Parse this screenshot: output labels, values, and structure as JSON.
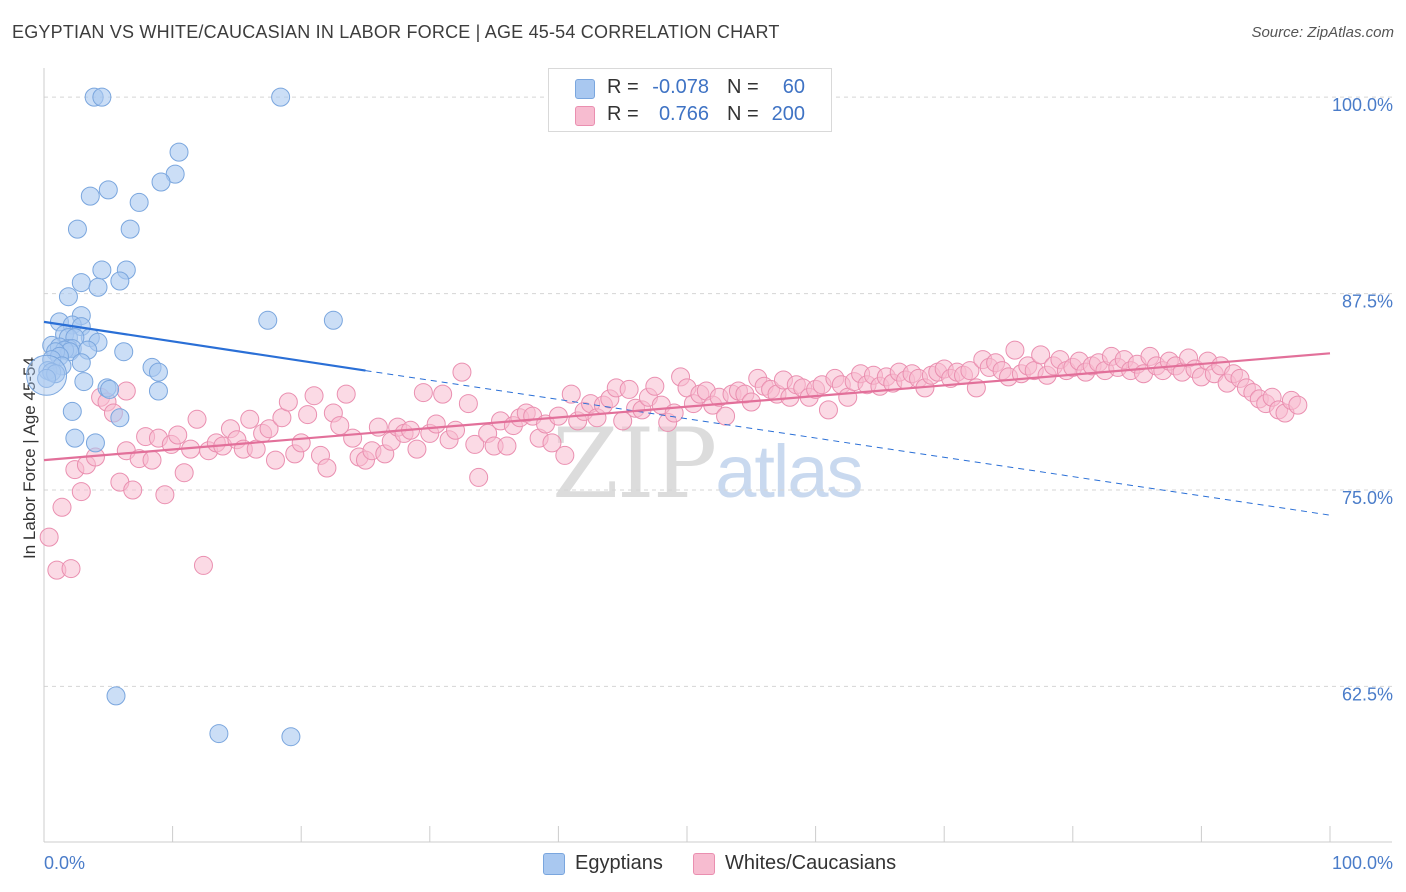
{
  "header": {
    "title": "EGYPTIAN VS WHITE/CAUCASIAN IN LABOR FORCE | AGE 45-54 CORRELATION CHART",
    "source": "Source: ZipAtlas.com"
  },
  "watermark": {
    "zip": "ZIP",
    "atlas": "atlas"
  },
  "legend": {
    "rows": [
      {
        "r_label": "R =",
        "r_value": "-0.078",
        "n_label": "N =",
        "n_value": "60"
      },
      {
        "r_label": "R =",
        "r_value": "0.766",
        "n_label": "N =",
        "n_value": "200"
      }
    ]
  },
  "bottom_legend": {
    "egyptians": "Egyptians",
    "whites": "Whites/Caucasians"
  },
  "colors": {
    "blue_fill": "#a9c8f0",
    "blue_stroke": "#7aa6de",
    "blue_line": "#2a6fd6",
    "pink_fill": "#f7bcd0",
    "pink_stroke": "#ea8fb0",
    "pink_line": "#e2709a",
    "grid": "#d5d5d5",
    "axis": "#cccccc",
    "tick_text": "#4a7cc9"
  },
  "chart_data": {
    "type": "scatter",
    "title": "EGYPTIAN VS WHITE/CAUCASIAN IN LABOR FORCE | AGE 45-54 CORRELATION CHART",
    "xlabel": "",
    "ylabel": "In Labor Force | Age 45-54",
    "xlim": [
      0,
      100
    ],
    "ylim": [
      52.6,
      101.6
    ],
    "x_tick_labels": [
      "0.0%",
      "100.0%"
    ],
    "y_ticks": [
      {
        "value": 100.0,
        "label": "100.0%"
      },
      {
        "value": 87.5,
        "label": "87.5%"
      },
      {
        "value": 75.0,
        "label": "75.0%"
      },
      {
        "value": 62.5,
        "label": "62.5%"
      }
    ],
    "series": [
      {
        "name": "Egyptians",
        "R": -0.078,
        "N": 60,
        "trend": {
          "x0": 0,
          "y0": 85.7,
          "x1": 25,
          "y1": 82.6,
          "dashed_to_x": 100,
          "dashed_to_y": 73.4
        },
        "points": [
          [
            3.9,
            100
          ],
          [
            4.5,
            100
          ],
          [
            18.4,
            100
          ],
          [
            10.5,
            96.5
          ],
          [
            10.2,
            95.1
          ],
          [
            9.1,
            94.6
          ],
          [
            5.0,
            94.1
          ],
          [
            3.6,
            93.7
          ],
          [
            7.4,
            93.3
          ],
          [
            2.6,
            91.6
          ],
          [
            6.7,
            91.6
          ],
          [
            4.5,
            89
          ],
          [
            6.4,
            89
          ],
          [
            5.9,
            88.3
          ],
          [
            2.9,
            88.2
          ],
          [
            4.2,
            87.9
          ],
          [
            1.9,
            87.3
          ],
          [
            2.9,
            86.1
          ],
          [
            17.4,
            85.8
          ],
          [
            22.5,
            85.8
          ],
          [
            1.2,
            85.7
          ],
          [
            2.2,
            85.5
          ],
          [
            2.9,
            85.4
          ],
          [
            1.6,
            84.9
          ],
          [
            1.9,
            84.7
          ],
          [
            3.6,
            84.7
          ],
          [
            2.4,
            84.7
          ],
          [
            4.2,
            84.4
          ],
          [
            0.6,
            84.2
          ],
          [
            1.2,
            84.1
          ],
          [
            1.9,
            84
          ],
          [
            2.2,
            84
          ],
          [
            1.6,
            83.9
          ],
          [
            3.4,
            83.9
          ],
          [
            2.0,
            83.8
          ],
          [
            0.9,
            83.8
          ],
          [
            6.2,
            83.8
          ],
          [
            1.2,
            83.5
          ],
          [
            0.6,
            83.3
          ],
          [
            2.9,
            83.1
          ],
          [
            1.4,
            82.9
          ],
          [
            8.4,
            82.8
          ],
          [
            0.3,
            82.6
          ],
          [
            0.6,
            82.5
          ],
          [
            0.9,
            82.4
          ],
          [
            8.9,
            82.5
          ],
          [
            0.2,
            82.1
          ],
          [
            3.1,
            81.9
          ],
          [
            4.9,
            81.5
          ],
          [
            5.1,
            81.4
          ],
          [
            8.9,
            81.3
          ],
          [
            5.9,
            79.6
          ],
          [
            2.2,
            80
          ],
          [
            2.4,
            78.3
          ],
          [
            4.0,
            78
          ],
          [
            5.6,
            61.9
          ],
          [
            13.6,
            59.5
          ],
          [
            19.2,
            59.3
          ]
        ]
      },
      {
        "name": "Whites/Caucasians",
        "R": 0.766,
        "N": 200,
        "trend": {
          "x0": 0,
          "y0": 76.9,
          "x1": 100,
          "y1": 83.7
        },
        "points": [
          [
            0.4,
            72
          ],
          [
            1.0,
            69.9
          ],
          [
            2.1,
            70
          ],
          [
            1.4,
            73.9
          ],
          [
            2.9,
            74.9
          ],
          [
            2.4,
            76.3
          ],
          [
            3.3,
            76.6
          ],
          [
            4.0,
            77.1
          ],
          [
            4.4,
            80.9
          ],
          [
            4.9,
            80.6
          ],
          [
            5.4,
            79.9
          ],
          [
            5.9,
            75.5
          ],
          [
            6.4,
            77.5
          ],
          [
            6.9,
            75
          ],
          [
            6.4,
            81.3
          ],
          [
            7.4,
            77
          ],
          [
            7.9,
            78.4
          ],
          [
            8.4,
            76.9
          ],
          [
            8.9,
            78.3
          ],
          [
            9.4,
            74.7
          ],
          [
            9.9,
            77.9
          ],
          [
            10.4,
            78.5
          ],
          [
            10.9,
            76.1
          ],
          [
            11.4,
            77.6
          ],
          [
            11.9,
            79.5
          ],
          [
            12.4,
            70.2
          ],
          [
            12.8,
            77.5
          ],
          [
            13.4,
            78
          ],
          [
            13.9,
            77.8
          ],
          [
            14.5,
            78.9
          ],
          [
            15.0,
            78.2
          ],
          [
            15.5,
            77.6
          ],
          [
            16.0,
            79.5
          ],
          [
            16.5,
            77.6
          ],
          [
            17.0,
            78.6
          ],
          [
            17.5,
            78.9
          ],
          [
            18.0,
            76.9
          ],
          [
            18.5,
            79.6
          ],
          [
            19.0,
            80.6
          ],
          [
            19.5,
            77.3
          ],
          [
            20.0,
            78
          ],
          [
            20.5,
            79.8
          ],
          [
            21.0,
            81
          ],
          [
            21.5,
            77.2
          ],
          [
            22.0,
            76.4
          ],
          [
            22.5,
            79.9
          ],
          [
            23.0,
            79.1
          ],
          [
            23.5,
            81.1
          ],
          [
            24.0,
            78.3
          ],
          [
            24.5,
            77.1
          ],
          [
            25.0,
            76.9
          ],
          [
            25.5,
            77.5
          ],
          [
            26.0,
            79
          ],
          [
            26.5,
            77.3
          ],
          [
            27.0,
            78.1
          ],
          [
            27.5,
            79
          ],
          [
            28.0,
            78.6
          ],
          [
            28.5,
            78.8
          ],
          [
            29.0,
            77.6
          ],
          [
            29.5,
            81.2
          ],
          [
            30.0,
            78.6
          ],
          [
            30.5,
            79.2
          ],
          [
            31.0,
            81.1
          ],
          [
            31.5,
            78.2
          ],
          [
            32.0,
            78.8
          ],
          [
            32.5,
            82.5
          ],
          [
            33.0,
            80.5
          ],
          [
            33.5,
            77.9
          ],
          [
            33.8,
            75.8
          ],
          [
            34.5,
            78.6
          ],
          [
            35.0,
            77.8
          ],
          [
            35.5,
            79.4
          ],
          [
            36.0,
            77.8
          ],
          [
            36.5,
            79.1
          ],
          [
            37.0,
            79.6
          ],
          [
            37.5,
            79.9
          ],
          [
            38.0,
            79.7
          ],
          [
            38.5,
            78.3
          ],
          [
            39.0,
            79.2
          ],
          [
            39.5,
            78
          ],
          [
            40.0,
            79.7
          ],
          [
            40.5,
            77.2
          ],
          [
            41.0,
            81.1
          ],
          [
            41.5,
            79.4
          ],
          [
            42.0,
            80
          ],
          [
            42.5,
            80.5
          ],
          [
            43.0,
            79.6
          ],
          [
            43.5,
            80.4
          ],
          [
            44.0,
            80.8
          ],
          [
            44.5,
            81.5
          ],
          [
            45.0,
            79.4
          ],
          [
            45.5,
            81.4
          ],
          [
            46.0,
            80.2
          ],
          [
            46.5,
            80.1
          ],
          [
            47.0,
            80.9
          ],
          [
            47.5,
            81.6
          ],
          [
            48.0,
            80.4
          ],
          [
            48.5,
            79.3
          ],
          [
            49.0,
            79.9
          ],
          [
            49.5,
            82.2
          ],
          [
            50.0,
            81.5
          ],
          [
            50.5,
            80.5
          ],
          [
            51.0,
            81.1
          ],
          [
            51.5,
            81.3
          ],
          [
            52.0,
            80.4
          ],
          [
            52.5,
            80.9
          ],
          [
            53.0,
            79.7
          ],
          [
            53.5,
            81.1
          ],
          [
            54.0,
            81.3
          ],
          [
            54.5,
            81.1
          ],
          [
            55.0,
            80.6
          ],
          [
            55.5,
            82.1
          ],
          [
            56.0,
            81.6
          ],
          [
            56.5,
            81.4
          ],
          [
            57.0,
            81.1
          ],
          [
            57.5,
            82
          ],
          [
            58.0,
            80.9
          ],
          [
            58.5,
            81.7
          ],
          [
            59.0,
            81.5
          ],
          [
            59.5,
            80.9
          ],
          [
            60.0,
            81.4
          ],
          [
            60.5,
            81.7
          ],
          [
            61.0,
            80.1
          ],
          [
            61.5,
            82.1
          ],
          [
            62.0,
            81.7
          ],
          [
            62.5,
            80.9
          ],
          [
            63.0,
            81.9
          ],
          [
            63.5,
            82.4
          ],
          [
            64.0,
            81.7
          ],
          [
            64.5,
            82.3
          ],
          [
            65.0,
            81.6
          ],
          [
            65.5,
            82.2
          ],
          [
            66.0,
            81.8
          ],
          [
            66.5,
            82.5
          ],
          [
            67.0,
            82
          ],
          [
            67.5,
            82.4
          ],
          [
            68.0,
            82.1
          ],
          [
            68.5,
            81.5
          ],
          [
            69.0,
            82.3
          ],
          [
            69.5,
            82.5
          ],
          [
            70.0,
            82.7
          ],
          [
            70.5,
            82.1
          ],
          [
            71.0,
            82.5
          ],
          [
            71.5,
            82.3
          ],
          [
            72.0,
            82.6
          ],
          [
            72.5,
            81.5
          ],
          [
            73.0,
            83.3
          ],
          [
            73.5,
            82.8
          ],
          [
            74.0,
            83.1
          ],
          [
            74.5,
            82.6
          ],
          [
            75.0,
            82.2
          ],
          [
            75.5,
            83.9
          ],
          [
            76.0,
            82.4
          ],
          [
            76.5,
            82.9
          ],
          [
            77.0,
            82.6
          ],
          [
            77.5,
            83.6
          ],
          [
            78.0,
            82.3
          ],
          [
            78.5,
            82.9
          ],
          [
            79.0,
            83.3
          ],
          [
            79.5,
            82.6
          ],
          [
            80.0,
            82.8
          ],
          [
            80.5,
            83.2
          ],
          [
            81.0,
            82.5
          ],
          [
            81.5,
            82.9
          ],
          [
            82.0,
            83.1
          ],
          [
            82.5,
            82.6
          ],
          [
            83.0,
            83.5
          ],
          [
            83.5,
            82.8
          ],
          [
            84.0,
            83.3
          ],
          [
            84.5,
            82.6
          ],
          [
            85.0,
            83
          ],
          [
            85.5,
            82.4
          ],
          [
            86.0,
            83.5
          ],
          [
            86.5,
            82.9
          ],
          [
            87.0,
            82.6
          ],
          [
            87.5,
            83.2
          ],
          [
            88.0,
            82.9
          ],
          [
            88.5,
            82.5
          ],
          [
            89.0,
            83.4
          ],
          [
            89.5,
            82.7
          ],
          [
            90.0,
            82.2
          ],
          [
            90.5,
            83.2
          ],
          [
            91.0,
            82.4
          ],
          [
            91.5,
            82.9
          ],
          [
            92.0,
            81.8
          ],
          [
            92.5,
            82.4
          ],
          [
            93.0,
            82.1
          ],
          [
            93.5,
            81.5
          ],
          [
            94.0,
            81.2
          ],
          [
            94.5,
            80.8
          ],
          [
            95.0,
            80.5
          ],
          [
            95.5,
            80.9
          ],
          [
            96.0,
            80.1
          ],
          [
            96.5,
            79.9
          ],
          [
            97.0,
            80.7
          ],
          [
            97.5,
            80.4
          ]
        ]
      }
    ]
  }
}
